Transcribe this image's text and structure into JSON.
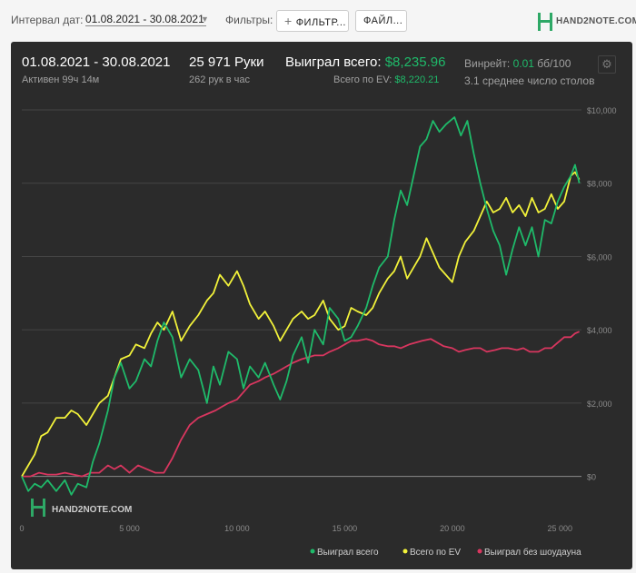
{
  "toolbar": {
    "interval_label": "Интервал дат:",
    "date_range": "01.08.2021 - 30.08.2021",
    "filters_label": "Фильтры:",
    "filter_button": "ФИЛЬТР...",
    "file_button": "ФАЙЛ...",
    "logo_text": "HAND2NOTE.COM"
  },
  "summary": {
    "date_range": "01.08.2021 - 30.08.2021",
    "active": "Активен 99ч 14м",
    "hands": "25 971 Руки",
    "hands_per_hour": "262 рук в час",
    "won_total_label": "Выиграл всего:",
    "won_total_value": "$8,235.96",
    "ev_label": "Всего по EV:",
    "ev_value": "$8,220.21",
    "winrate_label": "Винрейт:",
    "winrate_value": "0.01",
    "winrate_unit": "бб/100",
    "avg_tables": "3.1 среднее число столов"
  },
  "watermark": "HAND2NOTE.COM",
  "colors": {
    "won_total": "#1fba6a",
    "ev_total": "#f2f23a",
    "non_showdown": "#d9365f",
    "background": "#2b2b2b"
  },
  "chart_data": {
    "type": "line",
    "xlim": [
      0,
      26000
    ],
    "ylim": [
      -1000,
      10000
    ],
    "x_ticks": [
      0,
      5000,
      10000,
      15000,
      20000,
      25000
    ],
    "x_tick_labels": [
      "0",
      "5 000",
      "10 000",
      "15 000",
      "20 000",
      "25 000"
    ],
    "y_ticks": [
      0,
      2000,
      4000,
      6000,
      8000,
      10000
    ],
    "y_tick_labels": [
      "$0",
      "$2,000",
      "$4,000",
      "$6,000",
      "$8,000",
      "$10,000"
    ],
    "grid": true,
    "legend": "bottom-right",
    "series": [
      {
        "name": "Выиграл всего",
        "color": "#1fba6a",
        "points": [
          [
            0,
            0
          ],
          [
            300,
            -400
          ],
          [
            600,
            -200
          ],
          [
            900,
            -300
          ],
          [
            1200,
            -100
          ],
          [
            1600,
            -400
          ],
          [
            2000,
            -100
          ],
          [
            2300,
            -500
          ],
          [
            2600,
            -200
          ],
          [
            3000,
            -300
          ],
          [
            3300,
            400
          ],
          [
            3600,
            900
          ],
          [
            4000,
            1800
          ],
          [
            4300,
            2700
          ],
          [
            4600,
            3100
          ],
          [
            5000,
            2400
          ],
          [
            5300,
            2600
          ],
          [
            5700,
            3200
          ],
          [
            6000,
            3000
          ],
          [
            6300,
            3700
          ],
          [
            6600,
            4200
          ],
          [
            7000,
            3800
          ],
          [
            7400,
            2700
          ],
          [
            7800,
            3200
          ],
          [
            8200,
            2900
          ],
          [
            8600,
            2000
          ],
          [
            8900,
            3000
          ],
          [
            9200,
            2500
          ],
          [
            9600,
            3400
          ],
          [
            10000,
            3200
          ],
          [
            10300,
            2400
          ],
          [
            10600,
            3000
          ],
          [
            11000,
            2700
          ],
          [
            11300,
            3100
          ],
          [
            11700,
            2500
          ],
          [
            12000,
            2100
          ],
          [
            12300,
            2600
          ],
          [
            12600,
            3300
          ],
          [
            13000,
            3800
          ],
          [
            13300,
            3100
          ],
          [
            13600,
            4000
          ],
          [
            14000,
            3600
          ],
          [
            14300,
            4600
          ],
          [
            14700,
            4300
          ],
          [
            15000,
            3700
          ],
          [
            15300,
            3800
          ],
          [
            15600,
            4100
          ],
          [
            16000,
            4600
          ],
          [
            16300,
            5200
          ],
          [
            16600,
            5700
          ],
          [
            17000,
            6000
          ],
          [
            17300,
            7000
          ],
          [
            17600,
            7800
          ],
          [
            17900,
            7400
          ],
          [
            18200,
            8200
          ],
          [
            18500,
            9000
          ],
          [
            18800,
            9200
          ],
          [
            19100,
            9700
          ],
          [
            19400,
            9400
          ],
          [
            19700,
            9600
          ],
          [
            20100,
            9800
          ],
          [
            20400,
            9300
          ],
          [
            20700,
            9700
          ],
          [
            21000,
            8800
          ],
          [
            21300,
            8000
          ],
          [
            21600,
            7300
          ],
          [
            21900,
            6700
          ],
          [
            22200,
            6300
          ],
          [
            22500,
            5500
          ],
          [
            22800,
            6200
          ],
          [
            23100,
            6800
          ],
          [
            23400,
            6300
          ],
          [
            23700,
            6800
          ],
          [
            24000,
            6000
          ],
          [
            24300,
            7000
          ],
          [
            24600,
            6900
          ],
          [
            24900,
            7500
          ],
          [
            25200,
            7900
          ],
          [
            25500,
            8200
          ],
          [
            25700,
            8500
          ],
          [
            25900,
            8000
          ]
        ]
      },
      {
        "name": "Всего по EV",
        "color": "#f2f23a",
        "points": [
          [
            0,
            0
          ],
          [
            300,
            300
          ],
          [
            600,
            600
          ],
          [
            900,
            1100
          ],
          [
            1200,
            1200
          ],
          [
            1600,
            1600
          ],
          [
            2000,
            1600
          ],
          [
            2300,
            1800
          ],
          [
            2600,
            1700
          ],
          [
            3000,
            1400
          ],
          [
            3300,
            1700
          ],
          [
            3600,
            2000
          ],
          [
            4000,
            2200
          ],
          [
            4300,
            2700
          ],
          [
            4600,
            3200
          ],
          [
            5000,
            3300
          ],
          [
            5300,
            3600
          ],
          [
            5700,
            3500
          ],
          [
            6000,
            3900
          ],
          [
            6300,
            4200
          ],
          [
            6600,
            4000
          ],
          [
            7000,
            4500
          ],
          [
            7400,
            3700
          ],
          [
            7800,
            4100
          ],
          [
            8200,
            4400
          ],
          [
            8600,
            4800
          ],
          [
            8900,
            5000
          ],
          [
            9200,
            5500
          ],
          [
            9600,
            5200
          ],
          [
            10000,
            5600
          ],
          [
            10300,
            5200
          ],
          [
            10600,
            4700
          ],
          [
            11000,
            4300
          ],
          [
            11300,
            4500
          ],
          [
            11700,
            4100
          ],
          [
            12000,
            3700
          ],
          [
            12300,
            4000
          ],
          [
            12600,
            4300
          ],
          [
            13000,
            4500
          ],
          [
            13300,
            4300
          ],
          [
            13600,
            4400
          ],
          [
            14000,
            4800
          ],
          [
            14300,
            4300
          ],
          [
            14700,
            4000
          ],
          [
            15000,
            4100
          ],
          [
            15300,
            4600
          ],
          [
            15600,
            4500
          ],
          [
            16000,
            4400
          ],
          [
            16300,
            4600
          ],
          [
            16600,
            5000
          ],
          [
            17000,
            5400
          ],
          [
            17300,
            5600
          ],
          [
            17600,
            6000
          ],
          [
            17900,
            5400
          ],
          [
            18200,
            5700
          ],
          [
            18500,
            6000
          ],
          [
            18800,
            6500
          ],
          [
            19100,
            6100
          ],
          [
            19400,
            5700
          ],
          [
            19700,
            5500
          ],
          [
            20000,
            5300
          ],
          [
            20300,
            6000
          ],
          [
            20600,
            6400
          ],
          [
            21000,
            6700
          ],
          [
            21300,
            7100
          ],
          [
            21600,
            7500
          ],
          [
            21900,
            7200
          ],
          [
            22200,
            7300
          ],
          [
            22500,
            7600
          ],
          [
            22800,
            7200
          ],
          [
            23100,
            7400
          ],
          [
            23400,
            7100
          ],
          [
            23700,
            7600
          ],
          [
            24000,
            7200
          ],
          [
            24300,
            7300
          ],
          [
            24600,
            7700
          ],
          [
            24900,
            7300
          ],
          [
            25200,
            7500
          ],
          [
            25500,
            8200
          ],
          [
            25700,
            8300
          ],
          [
            25900,
            8100
          ]
        ]
      },
      {
        "name": "Выиграл без шоудауна",
        "color": "#d9365f",
        "points": [
          [
            0,
            0
          ],
          [
            400,
            0
          ],
          [
            800,
            100
          ],
          [
            1200,
            50
          ],
          [
            1600,
            50
          ],
          [
            2000,
            100
          ],
          [
            2400,
            50
          ],
          [
            2800,
            0
          ],
          [
            3200,
            100
          ],
          [
            3600,
            100
          ],
          [
            4000,
            300
          ],
          [
            4300,
            200
          ],
          [
            4600,
            300
          ],
          [
            5000,
            100
          ],
          [
            5400,
            300
          ],
          [
            5800,
            200
          ],
          [
            6200,
            100
          ],
          [
            6600,
            100
          ],
          [
            7000,
            500
          ],
          [
            7400,
            1000
          ],
          [
            7800,
            1400
          ],
          [
            8200,
            1600
          ],
          [
            8600,
            1700
          ],
          [
            9000,
            1800
          ],
          [
            9300,
            1900
          ],
          [
            9600,
            2000
          ],
          [
            10000,
            2100
          ],
          [
            10300,
            2300
          ],
          [
            10600,
            2500
          ],
          [
            11000,
            2600
          ],
          [
            11300,
            2700
          ],
          [
            11700,
            2800
          ],
          [
            12000,
            2900
          ],
          [
            12300,
            3000
          ],
          [
            12600,
            3100
          ],
          [
            13000,
            3200
          ],
          [
            13300,
            3250
          ],
          [
            13600,
            3300
          ],
          [
            14000,
            3300
          ],
          [
            14300,
            3400
          ],
          [
            14700,
            3500
          ],
          [
            15000,
            3600
          ],
          [
            15300,
            3700
          ],
          [
            15600,
            3700
          ],
          [
            16000,
            3750
          ],
          [
            16300,
            3700
          ],
          [
            16600,
            3600
          ],
          [
            17000,
            3550
          ],
          [
            17300,
            3550
          ],
          [
            17600,
            3500
          ],
          [
            18000,
            3600
          ],
          [
            18300,
            3650
          ],
          [
            18600,
            3700
          ],
          [
            19000,
            3750
          ],
          [
            19300,
            3650
          ],
          [
            19600,
            3550
          ],
          [
            20000,
            3500
          ],
          [
            20300,
            3400
          ],
          [
            20600,
            3450
          ],
          [
            21000,
            3500
          ],
          [
            21300,
            3500
          ],
          [
            21600,
            3400
          ],
          [
            22000,
            3450
          ],
          [
            22300,
            3500
          ],
          [
            22600,
            3500
          ],
          [
            23000,
            3450
          ],
          [
            23300,
            3500
          ],
          [
            23600,
            3400
          ],
          [
            24000,
            3400
          ],
          [
            24300,
            3500
          ],
          [
            24600,
            3500
          ],
          [
            24900,
            3650
          ],
          [
            25200,
            3800
          ],
          [
            25500,
            3800
          ],
          [
            25700,
            3900
          ],
          [
            25900,
            3950
          ]
        ]
      }
    ]
  }
}
